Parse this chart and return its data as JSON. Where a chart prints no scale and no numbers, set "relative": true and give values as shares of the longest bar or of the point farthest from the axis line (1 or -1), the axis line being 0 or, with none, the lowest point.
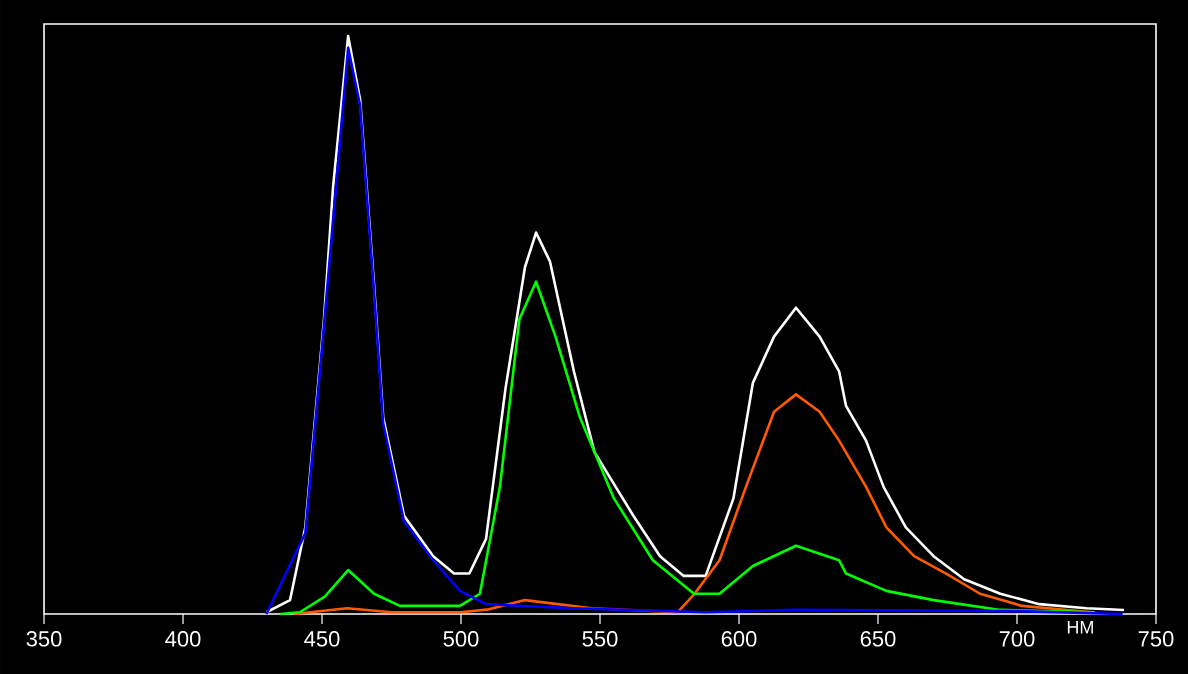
{
  "chart_data": {
    "type": "line",
    "relative": true,
    "xlabel": "НМ",
    "xlim": [
      350,
      750
    ],
    "xticks": [
      350,
      400,
      450,
      500,
      550,
      600,
      650,
      700,
      750
    ],
    "grid": false,
    "series": [
      {
        "color": "#ffffff",
        "x": [
          430,
          438.5,
          444,
          450.7,
          454,
          459.4,
          463.7,
          468.7,
          472,
          479.5,
          490,
          497.5,
          503,
          509,
          516,
          523,
          527,
          532,
          540.6,
          548,
          562,
          571.6,
          580,
          588,
          598,
          605,
          612.6,
          620.5,
          629,
          636,
          638.5,
          645.7,
          652,
          660,
          670,
          681,
          694,
          708,
          725,
          738.5
        ],
        "values": [
          0.003,
          0.024,
          0.15,
          0.51,
          0.74,
          1.0,
          0.89,
          0.57,
          0.34,
          0.17,
          0.1,
          0.07,
          0.07,
          0.13,
          0.39,
          0.6,
          0.66,
          0.61,
          0.42,
          0.28,
          0.17,
          0.1,
          0.066,
          0.066,
          0.2,
          0.4,
          0.48,
          0.53,
          0.48,
          0.42,
          0.36,
          0.3,
          0.22,
          0.15,
          0.1,
          0.06,
          0.035,
          0.017,
          0.01,
          0.007
        ]
      },
      {
        "color": "#ff5a00",
        "x": [
          440,
          459,
          475,
          500,
          510,
          523,
          547,
          578,
          584,
          593,
          602.5,
          612.6,
          620.5,
          629,
          636,
          645.7,
          653,
          663,
          674.5,
          686.7,
          701.8,
          718,
          727
        ],
        "values": [
          0,
          0.01,
          0.003,
          0.003,
          0.008,
          0.024,
          0.01,
          0.003,
          0.035,
          0.093,
          0.22,
          0.35,
          0.38,
          0.35,
          0.3,
          0.22,
          0.15,
          0.1,
          0.07,
          0.035,
          0.014,
          0.007,
          0.003
        ]
      },
      {
        "color": "#00ff00",
        "x": [
          435,
          442,
          451,
          459.4,
          468.7,
          478,
          499.6,
          506.8,
          514,
          521,
          527,
          534,
          542.8,
          555,
          569,
          583.8,
          593,
          605,
          620.5,
          636,
          638.5,
          653,
          670,
          694,
          728
        ],
        "values": [
          0,
          0.003,
          0.03,
          0.076,
          0.035,
          0.014,
          0.014,
          0.035,
          0.22,
          0.51,
          0.575,
          0.48,
          0.34,
          0.2,
          0.093,
          0.035,
          0.035,
          0.083,
          0.118,
          0.093,
          0.07,
          0.04,
          0.024,
          0.007,
          0.003
        ]
      },
      {
        "color": "#0000ff",
        "x": [
          430,
          444,
          450.7,
          459.4,
          463.7,
          468.7,
          472,
          479.5,
          490,
          499.6,
          509,
          540,
          588,
          620,
          700,
          738
        ],
        "values": [
          0,
          0.14,
          0.5,
          0.98,
          0.88,
          0.56,
          0.33,
          0.16,
          0.093,
          0.04,
          0.017,
          0.01,
          0.003,
          0.007,
          0.005,
          0
        ]
      }
    ]
  }
}
